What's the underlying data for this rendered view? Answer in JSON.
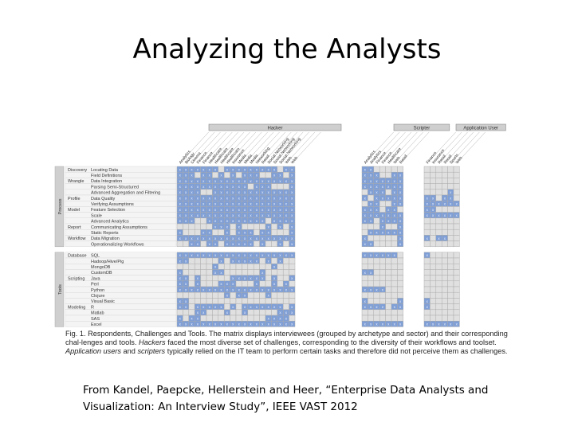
{
  "slide": {
    "title": "Analyzing the Analysts",
    "citation": "From Kandel, Paepcke, Hellerstein and Heer, “Enterprise Data Analysts and Visualization: An Interview Study”, IEEE VAST 2012"
  },
  "figure": {
    "archetypes": [
      {
        "name": "Hacker",
        "sectors": [
          "Analytics",
          "Biology",
          "Cinema",
          "Finance",
          "Finance",
          "Healthcare",
          "Healthcare",
          "Healthcare",
          "Healthcare",
          "Insurance",
          "Media",
          "Media",
          "Media",
          "Networking",
          "Retail",
          "Social Networking",
          "Social Networking",
          "Social Networking",
          "Web",
          "Web"
        ]
      },
      {
        "name": "Scripter",
        "sectors": [
          "Analytics",
          "Analytics",
          "Finance",
          "Finance",
          "Healthcare",
          "Web",
          "Retail"
        ]
      },
      {
        "name": "Application User",
        "sectors": [
          "Finance",
          "Insurance",
          "Retail",
          "Retail",
          "Sports",
          "Web"
        ]
      }
    ],
    "groups": [
      {
        "name": "Process",
        "categories": [
          {
            "name": "Discovery",
            "items": [
              "Locating Data",
              "Field Definitions"
            ]
          },
          {
            "name": "Wrangle",
            "items": [
              "Data Integration",
              "Parsing Semi-Structured",
              "Advanced Aggregation and Filtering"
            ]
          },
          {
            "name": "Profile",
            "items": [
              "Data Quality",
              "Verifying Assumptions"
            ]
          },
          {
            "name": "Model",
            "items": [
              "Feature Selection",
              "Scale",
              "Advanced Analytics"
            ]
          },
          {
            "name": "Report",
            "items": [
              "Communicating Assumptions",
              "Static Reports"
            ]
          },
          {
            "name": "Workflow",
            "items": [
              "Data Migration",
              "Operationalizing Workflows"
            ]
          }
        ]
      },
      {
        "name": "Tools",
        "categories": [
          {
            "name": "Database",
            "items": [
              "SQL",
              "Hadoop/Hive/Pig",
              "MongoDB",
              "CustomDB"
            ]
          },
          {
            "name": "Scripting",
            "items": [
              "Java",
              "Perl",
              "Python",
              "Clojure",
              "Visual Basic"
            ]
          },
          {
            "name": "Modeling",
            "items": [
              "R",
              "Matlab",
              "SAS",
              "Excel"
            ]
          }
        ]
      }
    ],
    "cells": [
      "XXXXXXX.XXXXXXXXX.XX|XX.....|......",
      "XXX.XX.X.X.XXX..XX.X|XXX..XX|......",
      "XXXXXXXXXXXXXXXXXXXX|XXXXXXX|......",
      "XXXXXXXXXXXX.XXX...X|XXXXXXX|......",
      "XXXX..XXXXXXXXXXXXXX|.XXX.XX|....X.",
      "XXXXXXXXXXXXXXXXXXXX|X.XXXXX|XX.XX.",
      "XXXXXXXXXXXXXXXXXXXX|.XX..XX|XXXXXX",
      "XXXXXXXXXXXXXXXXXXXX|XXX.XX.|XX....",
      "XXXXXXXXXXXXXXXXXXXX|XXXXXXX|XXXXXX",
      "XXX..XXXXXXXXXX.XXXX|XX.XXXX|......",
      "......XXX.X....X.X.X|...X..X|......",
      "X...XX..X.XXX.XX...X|.XXXXXX|......",
      "XXXXXXXXXXXXXXXXXXXX|X.....X|X.XX..",
      "..XX.XX.XXXXX.X..X.X|XX....X|......",
      "XXXXXXXXXXXXXXXXXXXX|XXXXXX.|X.....",
      "XX.....X.XXXXX.X.X..|.......|......",
      "......X.........X...|.......|......",
      "X.....XX......X.....|XX.....|......",
      "XX.X.....XXXXXX.X..X|.......|......",
      "XX.X...XXX...X..X.X.|.......|......",
      "XXXXXXXXXXXXXXXXXXXX|XXXX...|......",
      "........X.XX...X....|.......|......",
      "XX..................|X.....X|X.....",
      "XX.XXXXX.X.XXXXXXX.X|XXXX.XX|X.....",
      "...XX...X..X.....XXX|.......|......",
      "X.XX...........XXXX.|.......|......",
      "XXXXXXXXXXXXXXXXXXXX|XXXXXXX|XXXXXX"
    ],
    "caption": {
      "fig_label": "Fig. 1.",
      "text_1": "Respondents, Challenges and Tools. The matrix displays interviewees (grouped by archetype and sector) and their corresponding chal-lenges and tools.",
      "hackers": "Hackers",
      "text_2": "faced the most diverse set of challenges, corresponding to the diversity of their workflows and toolset.",
      "app_users": "Application users",
      "text_3": "and",
      "scripters": "scripters",
      "text_4": "typically relied on the IT team to perform certain tasks and therefore did not perceive them as challenges."
    },
    "colors": {
      "filled": "#7f9fd6",
      "empty": "#e0e0e0",
      "grid": "#aaaaaa",
      "header": "#cfcfcf",
      "text": "#333333"
    }
  }
}
